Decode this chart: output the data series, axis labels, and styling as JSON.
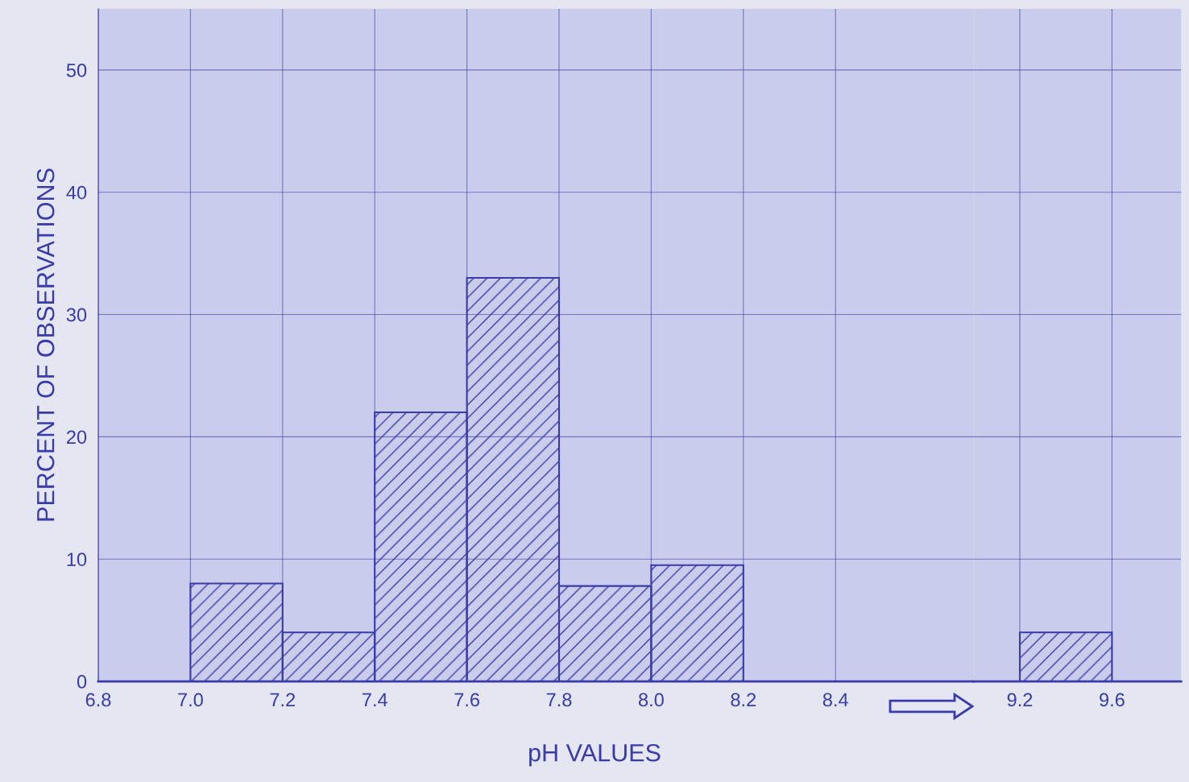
{
  "chart_data": [
    {
      "type": "histogram",
      "ylabel": "PERCENT OF OBSERVATIONS",
      "xlabel": "pH VALUES",
      "color": "#3a3aa8",
      "grid": true,
      "bins": [
        7.0,
        7.2,
        7.4,
        7.6,
        7.8,
        8.0,
        8.2
      ],
      "values": [
        8,
        4,
        22,
        33,
        7.8,
        9.5
      ],
      "xlim": [
        6.8,
        8.7
      ],
      "ylim": [
        0,
        55
      ],
      "xticks": [
        {
          "value": 6.8,
          "label": "6.8"
        },
        {
          "value": 7.0,
          "label": "7.0"
        },
        {
          "value": 7.2,
          "label": "7.2"
        },
        {
          "value": 7.4,
          "label": "7.4"
        },
        {
          "value": 7.6,
          "label": "7.6"
        },
        {
          "value": 7.8,
          "label": "7.8"
        },
        {
          "value": 8.0,
          "label": "8.0"
        },
        {
          "value": 8.2,
          "label": "8.2"
        },
        {
          "value": 8.4,
          "label": "8.4"
        }
      ],
      "yticks": [
        0,
        10,
        20,
        30,
        40,
        50
      ]
    },
    {
      "type": "histogram",
      "color": "#3a3aa8",
      "grid": true,
      "tick_labels": "x",
      "bins": [
        9.2,
        9.6
      ],
      "values": [
        4
      ],
      "xlim": [
        9.0,
        9.9
      ],
      "ylim": [
        0,
        55
      ],
      "xticks": [
        {
          "value": 9.2,
          "label": "9.2"
        },
        {
          "value": 9.6,
          "label": "9.6"
        }
      ],
      "yticks": [
        0,
        10,
        20,
        30,
        40,
        50
      ]
    }
  ]
}
